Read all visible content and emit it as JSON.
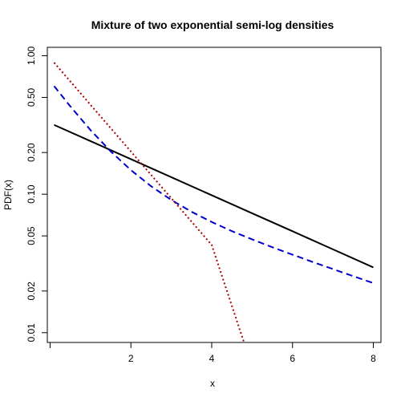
{
  "chart_data": {
    "type": "line",
    "title": "Mixture of two exponential semi-log densities",
    "xlabel": "x",
    "ylabel": "PDF(x)",
    "xlim": [
      0.1,
      8.0
    ],
    "ylim": [
      0.0085,
      1.15
    ],
    "y_scale": "log",
    "grid": false,
    "x_ticks": [
      {
        "value": 2,
        "label": "2"
      },
      {
        "value": 4,
        "label": "4"
      },
      {
        "value": 6,
        "label": "6"
      },
      {
        "value": 8,
        "label": "8"
      }
    ],
    "y_ticks": [
      {
        "value": 0.01,
        "label": "0.01"
      },
      {
        "value": 0.02,
        "label": "0.02"
      },
      {
        "value": 0.05,
        "label": "0.05"
      },
      {
        "value": 0.1,
        "label": "0.10"
      },
      {
        "value": 0.2,
        "label": "0.20"
      },
      {
        "value": 0.5,
        "label": "0.50"
      },
      {
        "value": 1.0,
        "label": "1.00"
      }
    ],
    "series": [
      {
        "color": "#000000",
        "dash": "solid",
        "x": [
          0.1,
          1.0,
          2.0,
          3.0,
          4.0,
          5.0,
          6.0,
          7.0,
          8.0
        ],
        "y": [
          0.3165,
          0.2418,
          0.1791,
          0.1327,
          0.0983,
          0.0728,
          0.054,
          0.04,
          0.0296
        ]
      },
      {
        "color": "#0000cc",
        "dash": "dashed",
        "x": [
          0.1,
          0.5,
          1.0,
          1.5,
          2.0,
          2.5,
          3.0,
          3.5,
          4.0,
          4.5,
          5.0,
          5.5,
          6.0,
          6.5,
          7.0,
          7.5,
          8.0
        ],
        "y": [
          0.6031,
          0.4311,
          0.2904,
          0.2038,
          0.1493,
          0.1142,
          0.0909,
          0.0747,
          0.063,
          0.0541,
          0.0472,
          0.0414,
          0.0366,
          0.0324,
          0.0288,
          0.0256,
          0.0228
        ]
      },
      {
        "color": "#aa0000",
        "dash": "dotted",
        "x": [
          0.1,
          1.0,
          2.0,
          3.0,
          4.0,
          4.8
        ],
        "y": [
          0.8916,
          0.4424,
          0.2034,
          0.0935,
          0.043,
          0.0085
        ]
      }
    ]
  }
}
